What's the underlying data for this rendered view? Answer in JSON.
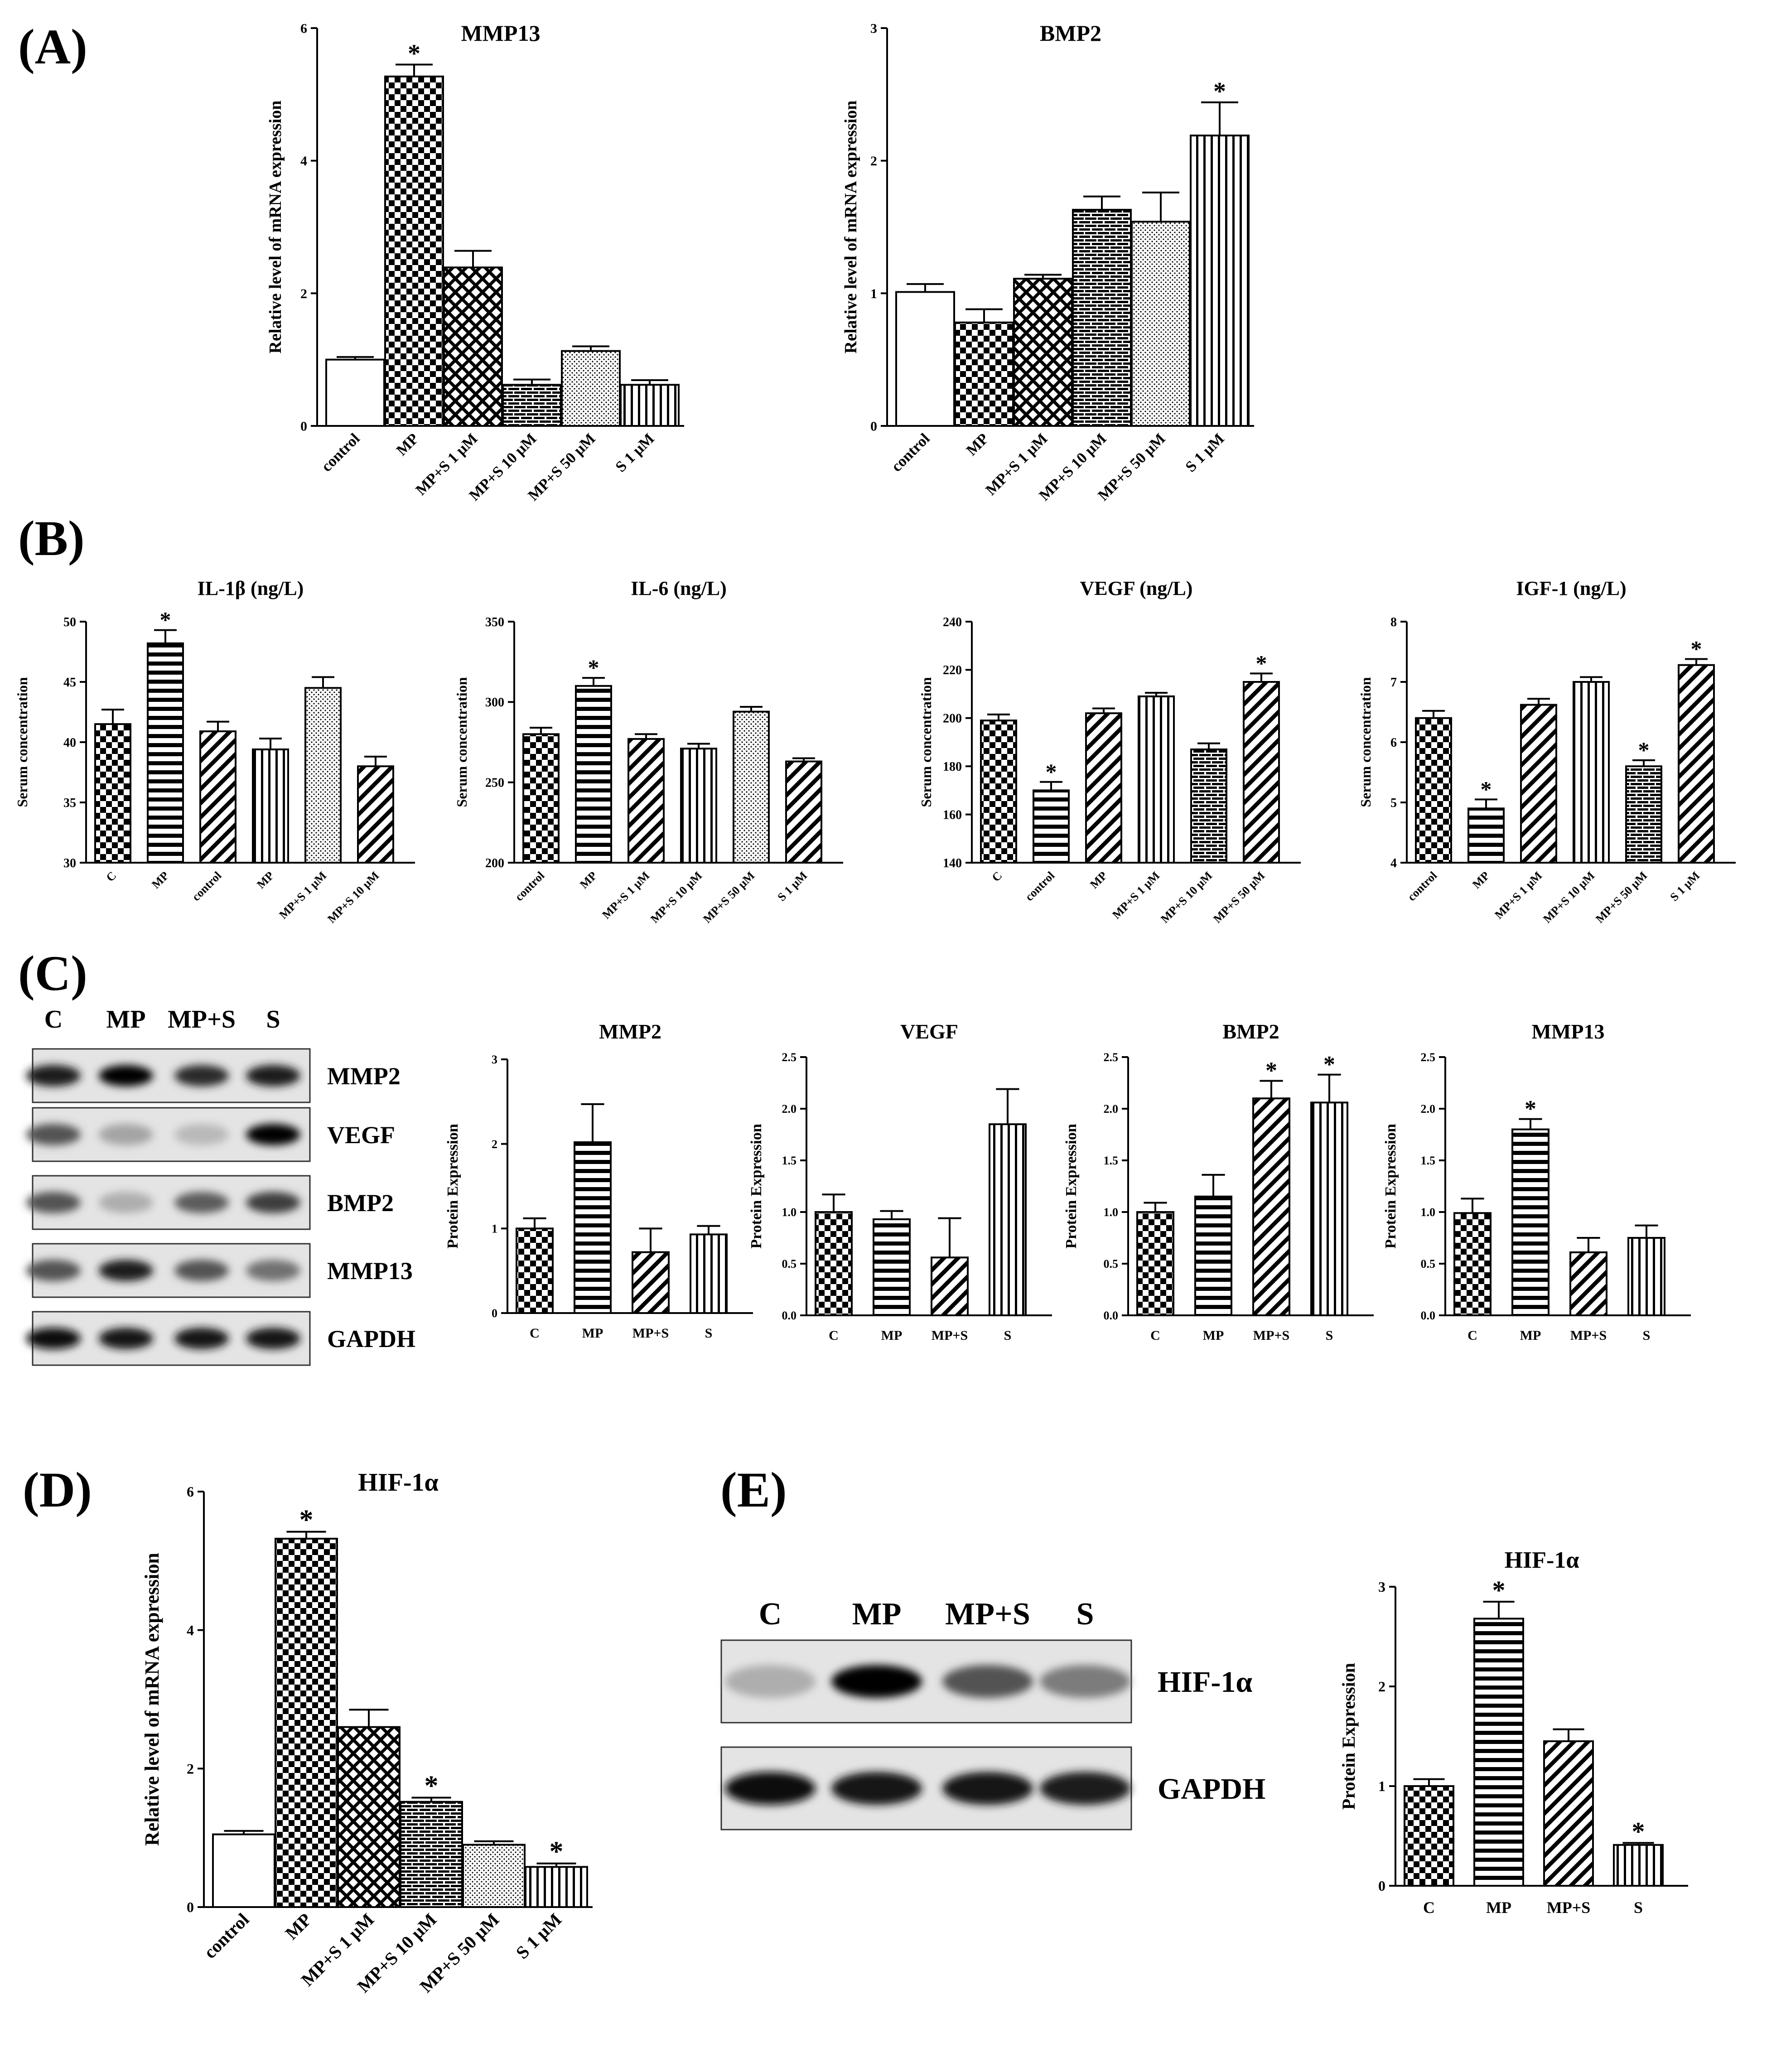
{
  "chart_data": [
    {
      "panel": "(A)",
      "type": "bar",
      "title": "MMP13",
      "ylabel": "Relative level of mRNA expression",
      "xlabel": "",
      "categories": [
        "control",
        "MP",
        "MP+S 1 μM",
        "MP+S 10 μM",
        "MP+S 50 μM",
        "S 1 μM"
      ],
      "values": [
        1.0,
        5.27,
        2.39,
        0.62,
        1.13,
        0.62
      ],
      "errors": [
        0.04,
        0.18,
        0.25,
        0.08,
        0.07,
        0.07
      ],
      "significant": [
        false,
        true,
        false,
        false,
        false,
        false
      ],
      "patterns": [
        "white",
        "check",
        "crosshatch",
        "brick",
        "dots",
        "vlines"
      ],
      "ylim": [
        0,
        6
      ],
      "yticks": [
        0,
        2,
        4,
        6
      ]
    },
    {
      "panel": "",
      "type": "bar",
      "title": "BMP2",
      "ylabel": "Relative level of mRNA expression",
      "xlabel": "",
      "categories": [
        "control",
        "MP",
        "MP+S 1 μM",
        "MP+S 10 μM",
        "MP+S 50 μM",
        "S 1 μM"
      ],
      "values": [
        1.01,
        0.78,
        1.11,
        1.63,
        1.54,
        2.19
      ],
      "errors": [
        0.06,
        0.1,
        0.03,
        0.1,
        0.22,
        0.25
      ],
      "significant": [
        false,
        false,
        false,
        false,
        false,
        true
      ],
      "patterns": [
        "white",
        "check",
        "crosshatch",
        "brick",
        "dots",
        "vlines"
      ],
      "ylim": [
        0,
        3
      ],
      "yticks": [
        0,
        1,
        2,
        3
      ]
    },
    {
      "panel": "(B)",
      "type": "bar",
      "title": "IL-1β (ng/L)",
      "ylabel": "Serum concentration",
      "xlabel": "",
      "categories": [
        "C",
        "MP",
        "control",
        "MP",
        "MP+S 1 μM",
        "MP+S 10 μM"
      ],
      "values": [
        41.5,
        48.2,
        40.9,
        39.4,
        44.5,
        38.0
      ],
      "errors": [
        1.2,
        1.1,
        0.8,
        0.9,
        0.9,
        0.8
      ],
      "significant": [
        false,
        true,
        false,
        false,
        false,
        false
      ],
      "patterns": [
        "check",
        "hlines",
        "diag",
        "vlines",
        "dots",
        "diag"
      ],
      "ylim": [
        30,
        50
      ],
      "yticks": [
        30,
        35,
        40,
        45,
        50
      ]
    },
    {
      "panel": "",
      "type": "bar",
      "title": "IL-6 (ng/L)",
      "ylabel": "Serum concentration",
      "xlabel": "",
      "categories": [
        "control",
        "MP",
        "MP+S 1 μM",
        "MP+S 10 μM",
        "MP+S 50 μM",
        "S 1 μM"
      ],
      "values": [
        280,
        310,
        277,
        271,
        294,
        263
      ],
      "errors": [
        4,
        5,
        3,
        3,
        3,
        2
      ],
      "significant": [
        false,
        true,
        false,
        false,
        false,
        false
      ],
      "patterns": [
        "check",
        "hlines",
        "diag",
        "vlines",
        "dots",
        "diag"
      ],
      "ylim": [
        200,
        350
      ],
      "yticks": [
        200,
        250,
        300,
        350
      ]
    },
    {
      "panel": "",
      "type": "bar",
      "title": "VEGF (ng/L)",
      "ylabel": "Serum concentration",
      "xlabel": "",
      "categories": [
        "C",
        "control",
        "MP",
        "MP+S 1 μM",
        "MP+S 10 μM",
        "MP+S 50 μM"
      ],
      "values": [
        199,
        170,
        202,
        209,
        187,
        215
      ],
      "errors": [
        2.5,
        3.5,
        2,
        1.5,
        2.5,
        3.5
      ],
      "significant": [
        false,
        true,
        false,
        false,
        false,
        true
      ],
      "patterns": [
        "check",
        "hlines",
        "diag",
        "vlines",
        "brick",
        "diag"
      ],
      "ylim": [
        140,
        240
      ],
      "yticks": [
        140,
        160,
        180,
        200,
        220,
        240
      ]
    },
    {
      "panel": "",
      "type": "bar",
      "title": "IGF-1 (ng/L)",
      "ylabel": "Serum concentration",
      "xlabel": "",
      "categories": [
        "control",
        "MP",
        "MP+S 1 μM",
        "MP+S 10 μM",
        "MP+S 50 μM",
        "S 1 μM"
      ],
      "values": [
        6.4,
        4.9,
        6.62,
        7.0,
        5.6,
        7.28
      ],
      "errors": [
        0.12,
        0.15,
        0.1,
        0.08,
        0.1,
        0.1
      ],
      "significant": [
        false,
        true,
        false,
        false,
        true,
        true
      ],
      "patterns": [
        "check",
        "hlines",
        "diag",
        "vlines",
        "brick",
        "diag"
      ],
      "ylim": [
        4,
        8
      ],
      "yticks": [
        4,
        5,
        6,
        7,
        8
      ]
    },
    {
      "panel": "(C)",
      "type": "bar",
      "title": "MMP2",
      "ylabel": "Protein Expression",
      "xlabel": "",
      "categories": [
        "C",
        "MP",
        "MP+S",
        "S"
      ],
      "values": [
        1.0,
        2.02,
        0.72,
        0.93
      ],
      "errors": [
        0.12,
        0.45,
        0.28,
        0.1
      ],
      "significant": [
        false,
        false,
        false,
        false
      ],
      "patterns": [
        "check",
        "hlines",
        "diag",
        "vlines"
      ],
      "ylim": [
        0,
        3
      ],
      "yticks": [
        0,
        1,
        2,
        3
      ]
    },
    {
      "panel": "",
      "type": "bar",
      "title": "VEGF",
      "ylabel": "Protein Expression",
      "xlabel": "",
      "categories": [
        "C",
        "MP",
        "MP+S",
        "S"
      ],
      "values": [
        1.0,
        0.93,
        0.56,
        1.85
      ],
      "errors": [
        0.17,
        0.08,
        0.38,
        0.34
      ],
      "significant": [
        false,
        false,
        false,
        false
      ],
      "patterns": [
        "check",
        "hlines",
        "diag",
        "vlines"
      ],
      "ylim": [
        0,
        2.5
      ],
      "yticks": [
        0.0,
        0.5,
        1.0,
        1.5,
        2.0,
        2.5
      ]
    },
    {
      "panel": "",
      "type": "bar",
      "title": "BMP2",
      "ylabel": "Protein Expression",
      "xlabel": "",
      "categories": [
        "C",
        "MP",
        "MP+S",
        "S"
      ],
      "values": [
        1.0,
        1.15,
        2.1,
        2.06
      ],
      "errors": [
        0.09,
        0.21,
        0.17,
        0.27
      ],
      "significant": [
        false,
        false,
        true,
        true
      ],
      "patterns": [
        "check",
        "hlines",
        "diag",
        "vlines"
      ],
      "ylim": [
        0,
        2.5
      ],
      "yticks": [
        0.0,
        0.5,
        1.0,
        1.5,
        2.0,
        2.5
      ]
    },
    {
      "panel": "",
      "type": "bar",
      "title": "MMP13",
      "ylabel": "Protein Expression",
      "xlabel": "",
      "categories": [
        "C",
        "MP",
        "MP+S",
        "S"
      ],
      "values": [
        0.99,
        1.8,
        0.61,
        0.75
      ],
      "errors": [
        0.14,
        0.1,
        0.14,
        0.12
      ],
      "significant": [
        false,
        true,
        false,
        false
      ],
      "patterns": [
        "check",
        "hlines",
        "diag",
        "vlines"
      ],
      "ylim": [
        0,
        2.5
      ],
      "yticks": [
        0.0,
        0.5,
        1.0,
        1.5,
        2.0,
        2.5
      ]
    },
    {
      "panel": "(D)",
      "type": "bar",
      "title": "HIF-1α",
      "ylabel": "Relative level of mRNA expression",
      "xlabel": "",
      "categories": [
        "control",
        "MP",
        "MP+S 1 μM",
        "MP+S 10 μM",
        "MP+S 50 μM",
        "S 1 μM"
      ],
      "values": [
        1.05,
        5.32,
        2.6,
        1.52,
        0.9,
        0.58
      ],
      "errors": [
        0.05,
        0.1,
        0.25,
        0.06,
        0.05,
        0.05
      ],
      "significant": [
        false,
        true,
        false,
        true,
        false,
        true
      ],
      "patterns": [
        "white",
        "check",
        "crosshatch",
        "brick",
        "dots",
        "vlines"
      ],
      "ylim": [
        0,
        6
      ],
      "yticks": [
        0,
        2,
        4,
        6
      ]
    },
    {
      "panel": "",
      "type": "bar",
      "title": "HIF-1α",
      "ylabel": "Protein Expression",
      "xlabel": "",
      "categories": [
        "C",
        "MP",
        "MP+S",
        "S"
      ],
      "values": [
        1.0,
        2.68,
        1.45,
        0.41
      ],
      "errors": [
        0.07,
        0.17,
        0.12,
        0.02
      ],
      "significant": [
        false,
        true,
        false,
        true
      ],
      "patterns": [
        "check",
        "hlines",
        "diag",
        "vlines"
      ],
      "ylim": [
        0,
        3
      ],
      "yticks": [
        0,
        1,
        2,
        3
      ]
    }
  ],
  "blots": {
    "C": {
      "lanes": [
        "C",
        "MP",
        "MP+S",
        "S"
      ],
      "rows": [
        {
          "label": "MMP2",
          "intensity": [
            0.85,
            1.0,
            0.8,
            0.85
          ]
        },
        {
          "label": "VEGF",
          "intensity": [
            0.6,
            0.2,
            0.1,
            1.0
          ]
        },
        {
          "label": "BMP2",
          "intensity": [
            0.6,
            0.15,
            0.55,
            0.7
          ]
        },
        {
          "label": "MMP13",
          "intensity": [
            0.6,
            0.85,
            0.6,
            0.45
          ]
        },
        {
          "label": "GAPDH",
          "intensity": [
            0.95,
            0.9,
            0.9,
            0.9
          ]
        }
      ]
    },
    "E": {
      "panel": "(E)",
      "lanes": [
        "C",
        "MP",
        "MP+S",
        "S"
      ],
      "rows": [
        {
          "label": "HIF-1α",
          "intensity": [
            0.15,
            1.0,
            0.6,
            0.4
          ]
        },
        {
          "label": "GAPDH",
          "intensity": [
            0.95,
            0.9,
            0.9,
            0.85
          ]
        }
      ]
    }
  }
}
